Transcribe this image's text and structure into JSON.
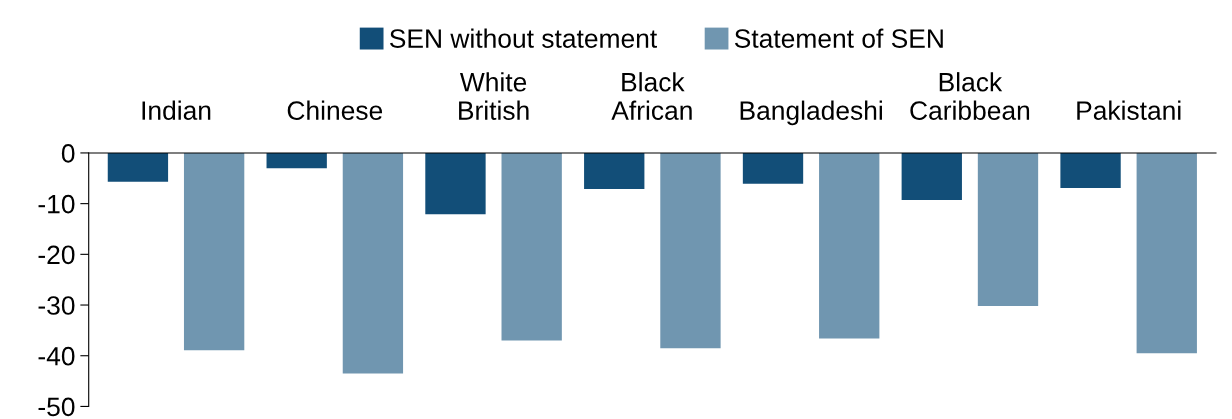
{
  "chart_data": {
    "type": "bar",
    "categories": [
      "Indian",
      "Chinese",
      "White\nBritish",
      "Black\nAfrican",
      "Bangladeshi",
      "Black\nCaribbean",
      "Pakistani"
    ],
    "series": [
      {
        "name": "SEN without statement",
        "color": "#124e78",
        "values": [
          -5.7,
          -3.0,
          -12.1,
          -7.1,
          -6.1,
          -9.3,
          -6.9
        ]
      },
      {
        "name": "Statement of SEN",
        "color": "#7096b0",
        "values": [
          -38.9,
          -43.5,
          -37.0,
          -38.5,
          -36.6,
          -30.2,
          -39.5
        ]
      }
    ],
    "ylim": [
      -50,
      0
    ],
    "yticks": [
      -50,
      -40,
      -30,
      -20,
      -10,
      0
    ],
    "grid": false,
    "legend": "top"
  }
}
